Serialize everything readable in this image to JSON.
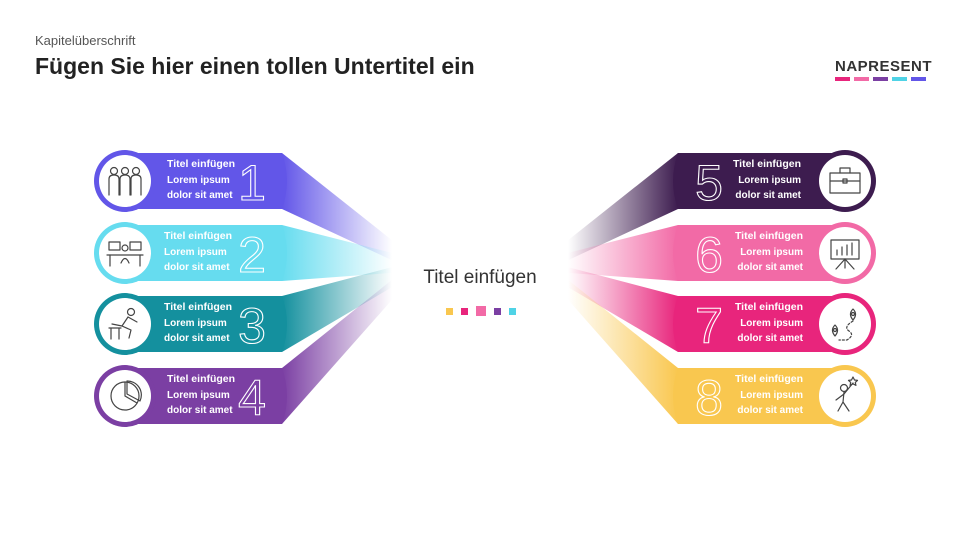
{
  "header": {
    "kicker": "Kapitelüberschrift",
    "title": "Fügen Sie hier einen tollen Untertitel ein"
  },
  "logo": {
    "text": "NAPRESENT",
    "bar_colors": [
      "#e8257c",
      "#f26aa6",
      "#7b3fa3",
      "#4fd3e6",
      "#6256e8"
    ]
  },
  "center": {
    "title": "Titel einfügen",
    "dot_colors": [
      "#f9c74f",
      "#e8257c",
      "#f26aa6",
      "#7b3fa3",
      "#4fd3e6"
    ]
  },
  "items": [
    {
      "number": "1",
      "heading": "Titel einfügen",
      "line1": "Lorem ipsum",
      "line2": "dolor sit amet",
      "color": "#6256e8",
      "icon": "team-icon"
    },
    {
      "number": "2",
      "heading": "Titel einfügen",
      "line1": "Lorem ipsum",
      "line2": "dolor sit amet",
      "color": "#66dcef",
      "icon": "workspace-icon"
    },
    {
      "number": "3",
      "heading": "Titel einfügen",
      "line1": "Lorem ipsum",
      "line2": "dolor sit amet",
      "color": "#14909e",
      "icon": "hurdle-runner-icon"
    },
    {
      "number": "4",
      "heading": "Titel einfügen",
      "line1": "Lorem ipsum",
      "line2": "dolor sit amet",
      "color": "#7b3fa3",
      "icon": "pie-chart-icon"
    },
    {
      "number": "5",
      "heading": "Titel einfügen",
      "line1": "Lorem ipsum",
      "line2": "dolor sit amet",
      "color": "#3d1c4f",
      "icon": "briefcase-icon"
    },
    {
      "number": "6",
      "heading": "Titel einfügen",
      "line1": "Lorem ipsum",
      "line2": "dolor sit amet",
      "color": "#f26aa6",
      "icon": "presentation-board-icon"
    },
    {
      "number": "7",
      "heading": "Titel einfügen",
      "line1": "Lorem ipsum",
      "line2": "dolor sit amet",
      "color": "#e8257c",
      "icon": "route-map-icon"
    },
    {
      "number": "8",
      "heading": "Titel einfügen",
      "line1": "Lorem ipsum",
      "line2": "dolor sit amet",
      "color": "#f9c74f",
      "icon": "success-person-icon"
    }
  ]
}
